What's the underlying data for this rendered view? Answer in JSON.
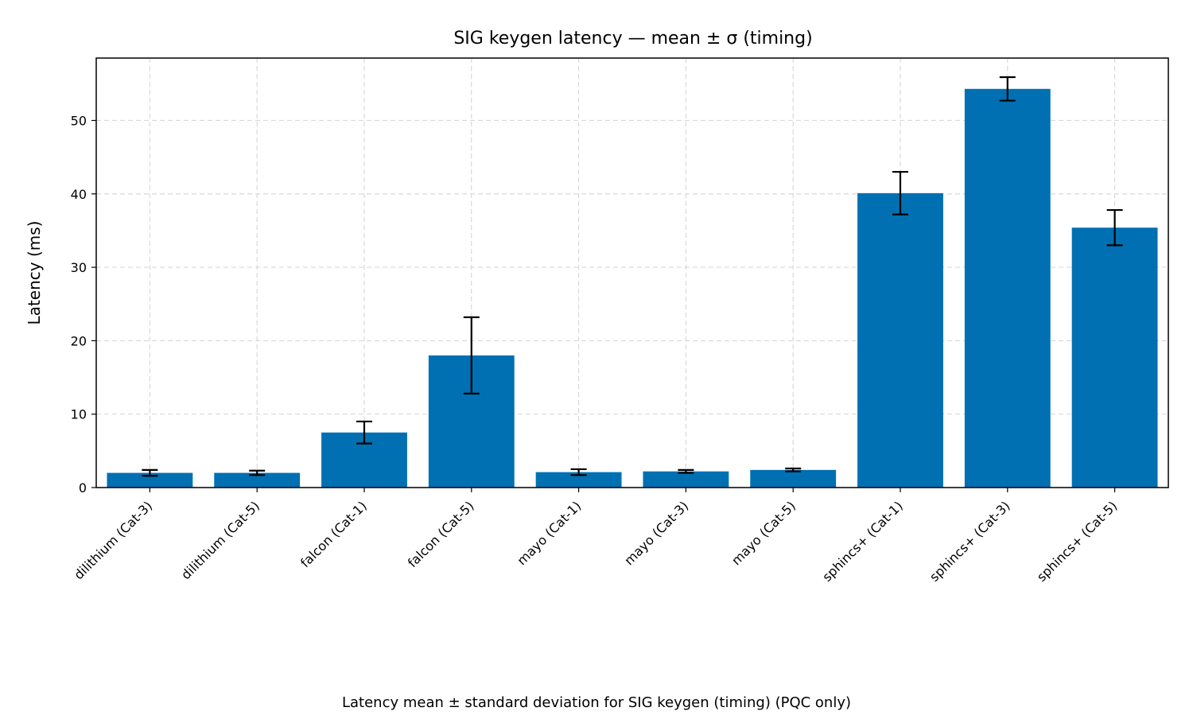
{
  "chart_data": {
    "type": "bar",
    "title": "SIG keygen latency — mean ± σ (timing)",
    "ylabel": "Latency (ms)",
    "xlabel": "",
    "caption": "Latency mean ± standard deviation for SIG keygen (timing) (PQC only)",
    "categories": [
      "dilithium (Cat-3)",
      "dilithium (Cat-5)",
      "falcon (Cat-1)",
      "falcon (Cat-5)",
      "mayo (Cat-1)",
      "mayo (Cat-3)",
      "mayo (Cat-5)",
      "sphincs+ (Cat-1)",
      "sphincs+ (Cat-3)",
      "sphincs+ (Cat-5)"
    ],
    "values": [
      2.0,
      2.0,
      7.5,
      18.0,
      2.1,
      2.2,
      2.4,
      40.1,
      54.3,
      35.4
    ],
    "errors": [
      0.4,
      0.3,
      1.5,
      5.2,
      0.4,
      0.2,
      0.2,
      2.9,
      1.6,
      2.4
    ],
    "ylim": [
      0,
      58.5
    ],
    "yticks": [
      0,
      10,
      20,
      30,
      40,
      50
    ],
    "grid": true,
    "colors": {
      "bar": "#0070b3",
      "errorbar": "#000000",
      "grid": "#d9d9d9"
    }
  }
}
